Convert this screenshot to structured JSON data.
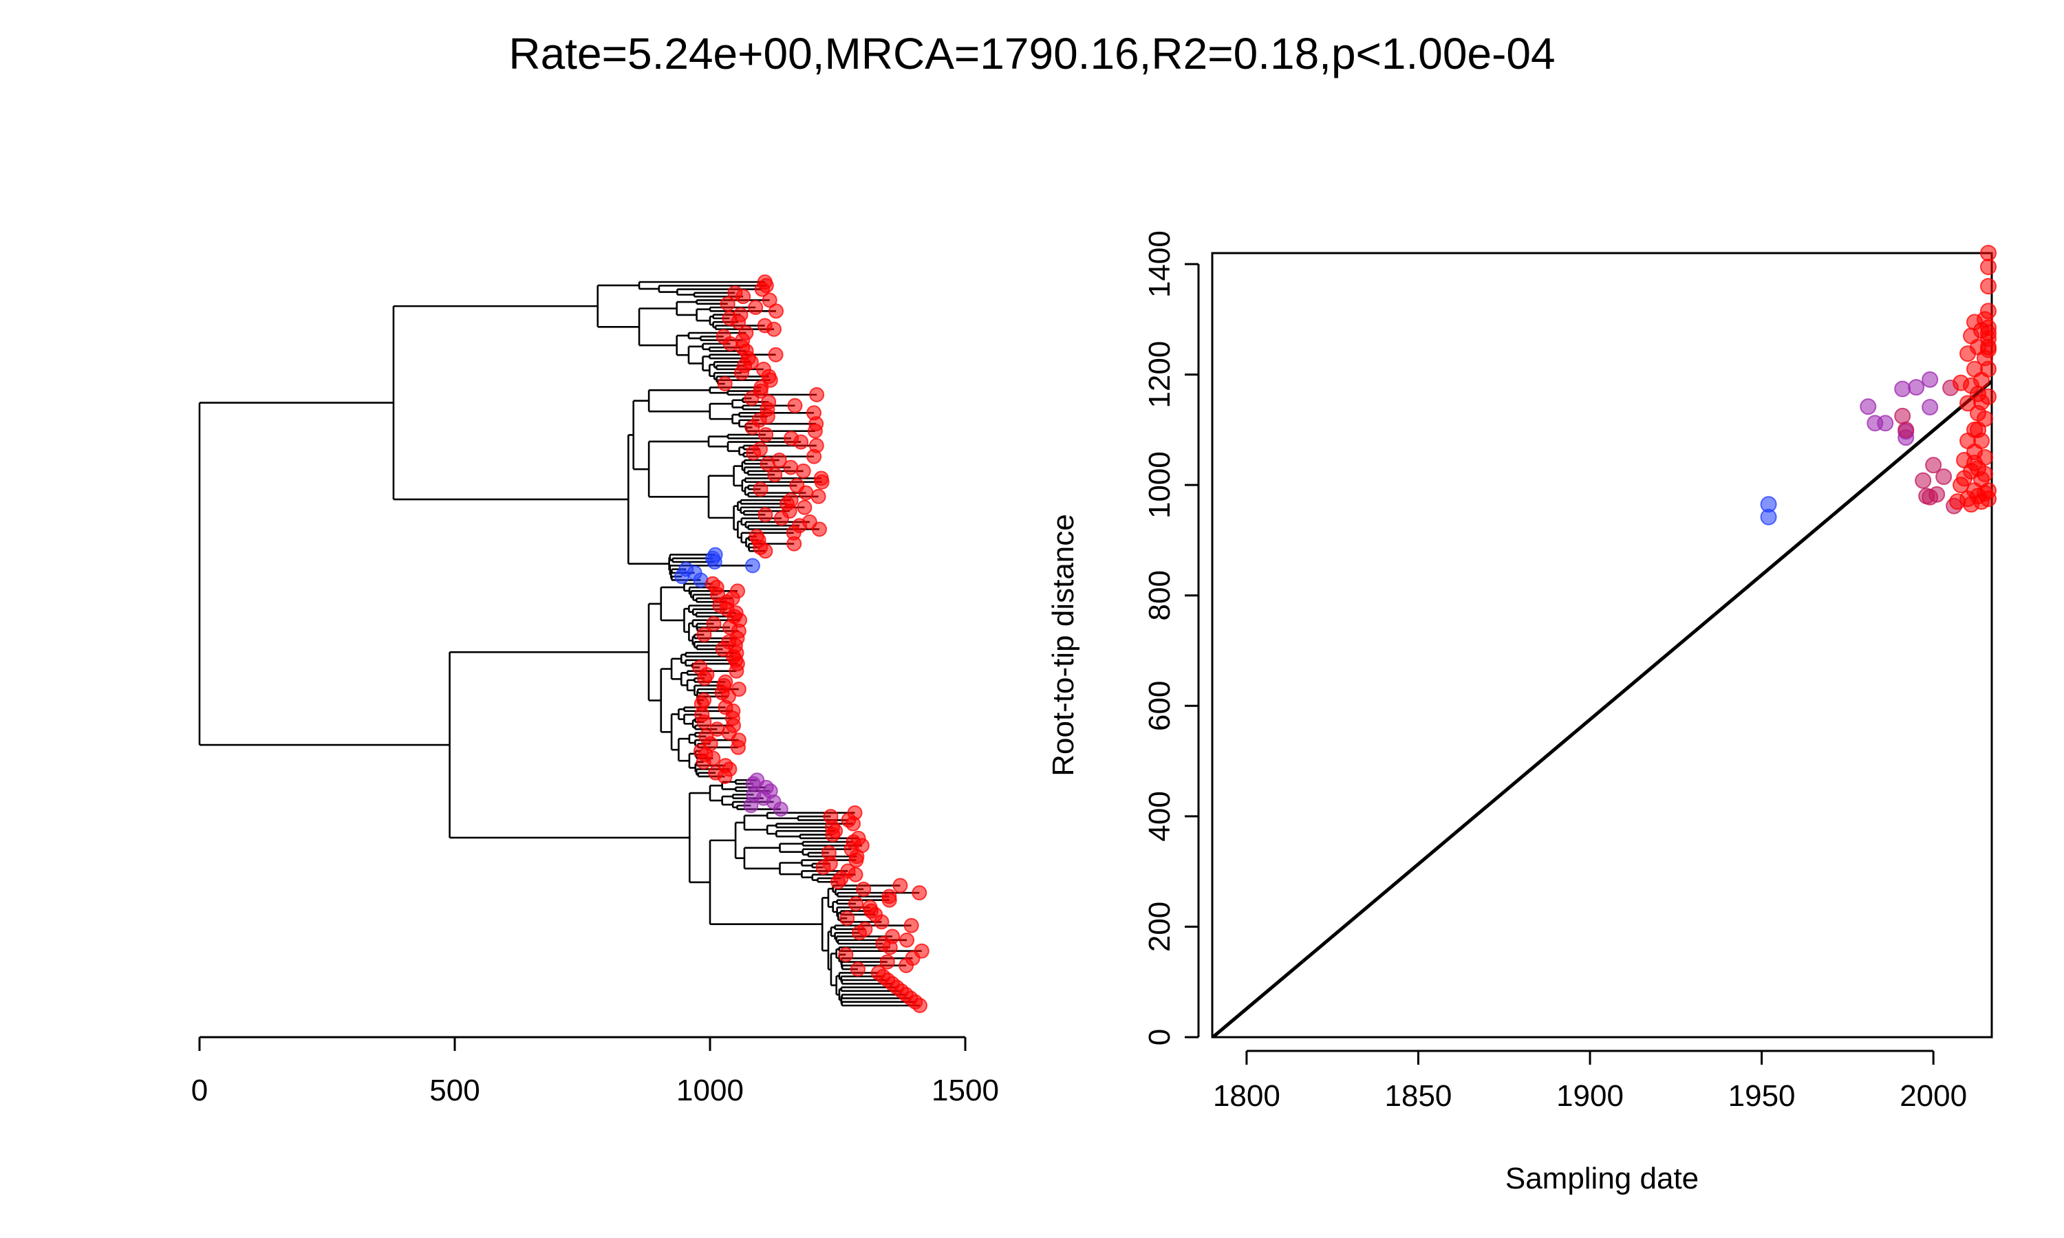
{
  "title": "Rate=5.24e+00,MRCA=1790.16,R2=0.18,p<1.00e-04",
  "colors": {
    "red": "#ff0000",
    "purple": "#9c27b0",
    "magenta": "#c2185b",
    "blue": "#1f3cff",
    "green": "#2e7d32",
    "line": "#000000"
  },
  "chart_data": [
    {
      "type": "tree",
      "xlim": [
        0,
        1500
      ],
      "xticks": [
        "0",
        "500",
        "1000",
        "1500"
      ],
      "xlabel": "",
      "ylabel": "",
      "tips_count": 200,
      "tip_colors_note_hidden": true
    },
    {
      "type": "scatter",
      "title": "",
      "xlabel": "Sampling date",
      "ylabel": "Root-to-tip distance",
      "xlim": [
        1790,
        2017
      ],
      "ylim": [
        0,
        1420
      ],
      "xticks": [
        "1800",
        "1850",
        "1900",
        "1950",
        "2000"
      ],
      "yticks": [
        "0",
        "200",
        "400",
        "600",
        "800",
        "1000",
        "1200",
        "1400"
      ],
      "regression_line": {
        "x": [
          1790.16,
          2017
        ],
        "y": [
          0,
          1188
        ]
      },
      "series": [
        {
          "color": "blue",
          "points": [
            [
              1952,
              965
            ],
            [
              1952,
              942
            ]
          ]
        },
        {
          "color": "purple",
          "points": [
            [
              1981,
              1142
            ],
            [
              1983,
              1112
            ],
            [
              1986,
              1112
            ],
            [
              1991,
              1174
            ],
            [
              1992,
              1097
            ],
            [
              1992,
              1086
            ],
            [
              1995,
              1177
            ],
            [
              1999,
              1191
            ],
            [
              1999,
              1141
            ]
          ]
        },
        {
          "color": "magenta",
          "points": [
            [
              1991,
              1125
            ],
            [
              1992,
              1100
            ],
            [
              1997,
              1008
            ],
            [
              1998,
              980
            ],
            [
              2000,
              1036
            ],
            [
              2001,
              983
            ],
            [
              2003,
              1015
            ],
            [
              2005,
              1176
            ],
            [
              2006,
              962
            ],
            [
              1999,
              978
            ]
          ]
        },
        {
          "color": "red",
          "points": [
            [
              2007,
              970
            ],
            [
              2008,
              1000
            ],
            [
              2008,
              1185
            ],
            [
              2009,
              1012
            ],
            [
              2009,
              1045
            ],
            [
              2010,
              975
            ],
            [
              2010,
              1148
            ],
            [
              2010,
              1238
            ],
            [
              2011,
              965
            ],
            [
              2011,
              1025
            ],
            [
              2011,
              1270
            ],
            [
              2012,
              990
            ],
            [
              2012,
              1060
            ],
            [
              2012,
              1100
            ],
            [
              2012,
              1210
            ],
            [
              2012,
              1295
            ],
            [
              2013,
              980
            ],
            [
              2013,
              1030
            ],
            [
              2013,
              1130
            ],
            [
              2013,
              1165
            ],
            [
              2013,
              1250
            ],
            [
              2014,
              970
            ],
            [
              2014,
              1010
            ],
            [
              2014,
              1080
            ],
            [
              2014,
              1190
            ],
            [
              2014,
              1280
            ],
            [
              2015,
              985
            ],
            [
              2015,
              1050
            ],
            [
              2015,
              1120
            ],
            [
              2015,
              1230
            ],
            [
              2015,
              1300
            ],
            [
              2016,
              975
            ],
            [
              2016,
              1265
            ],
            [
              2016,
              1315
            ],
            [
              2016,
              1160
            ],
            [
              2016,
              1210
            ],
            [
              2016,
              1245
            ],
            [
              2016,
              1275
            ],
            [
              2016,
              1360
            ],
            [
              2016,
              1395
            ],
            [
              2016,
              1420
            ],
            [
              2016,
              1250
            ],
            [
              2016,
              1285
            ],
            [
              2016,
              990
            ],
            [
              2013,
              1100
            ],
            [
              2014,
              1150
            ],
            [
              2015,
              1020
            ],
            [
              2012,
              1040
            ],
            [
              2011,
              1180
            ],
            [
              2010,
              1080
            ]
          ]
        }
      ]
    }
  ]
}
